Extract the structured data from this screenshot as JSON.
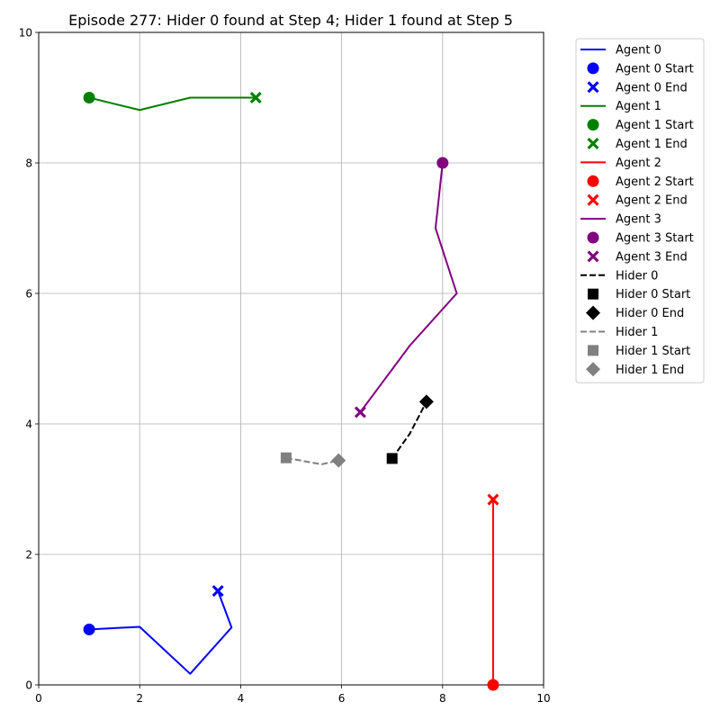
{
  "chart_data": {
    "type": "line",
    "title": "Episode 277: Hider 0 found at Step 4; Hider 1 found at Step 5",
    "xlabel": "",
    "ylabel": "",
    "xlim": [
      0,
      10
    ],
    "ylim": [
      0,
      10
    ],
    "x_ticks": [
      0,
      2,
      4,
      6,
      8,
      10
    ],
    "y_ticks": [
      0,
      2,
      4,
      6,
      8,
      10
    ],
    "x_tick_labels": [
      "0",
      "2",
      "4",
      "6",
      "8",
      "10"
    ],
    "y_tick_labels": [
      "0",
      "2",
      "4",
      "6",
      "8",
      "10"
    ],
    "grid": true,
    "legend_position": "outside-right",
    "series": [
      {
        "name": "Agent 0",
        "color": "#0000ff",
        "dash": "solid",
        "start_marker": "circle",
        "end_marker": "x",
        "start_label": "Agent 0 Start",
        "end_label": "Agent 0 End",
        "points": [
          [
            1.0,
            0.85
          ],
          [
            2.0,
            0.89
          ],
          [
            3.0,
            0.17
          ],
          [
            3.82,
            0.88
          ],
          [
            3.55,
            1.44
          ]
        ]
      },
      {
        "name": "Agent 1",
        "color": "#008000",
        "dash": "solid",
        "start_marker": "circle",
        "end_marker": "x",
        "start_label": "Agent 1 Start",
        "end_label": "Agent 1 End",
        "points": [
          [
            1.0,
            9.0
          ],
          [
            2.0,
            8.81
          ],
          [
            3.0,
            9.0
          ],
          [
            4.3,
            9.0
          ]
        ]
      },
      {
        "name": "Agent 2",
        "color": "#ff0000",
        "dash": "solid",
        "start_marker": "circle",
        "end_marker": "x",
        "start_label": "Agent 2 Start",
        "end_label": "Agent 2 End",
        "points": [
          [
            9.0,
            0.0
          ],
          [
            9.0,
            2.84
          ]
        ]
      },
      {
        "name": "Agent 3",
        "color": "#800080",
        "dash": "solid",
        "start_marker": "circle",
        "end_marker": "x",
        "start_label": "Agent 3 Start",
        "end_label": "Agent 3 End",
        "points": [
          [
            8.0,
            8.0
          ],
          [
            7.86,
            7.0
          ],
          [
            8.28,
            6.0
          ],
          [
            7.35,
            5.2
          ],
          [
            6.37,
            4.18
          ]
        ]
      },
      {
        "name": "Hider 0",
        "color": "#000000",
        "dash": "dashed",
        "start_marker": "square",
        "end_marker": "diamond",
        "start_label": "Hider 0 Start",
        "end_label": "Hider 0 End",
        "points": [
          [
            7.0,
            3.47
          ],
          [
            7.35,
            3.85
          ],
          [
            7.68,
            4.34
          ]
        ]
      },
      {
        "name": "Hider 1",
        "color": "#808080",
        "dash": "dashed",
        "start_marker": "square",
        "end_marker": "diamond",
        "start_label": "Hider 1 Start",
        "end_label": "Hider 1 End",
        "points": [
          [
            4.9,
            3.48
          ],
          [
            5.6,
            3.38
          ],
          [
            5.94,
            3.44
          ]
        ]
      }
    ]
  }
}
